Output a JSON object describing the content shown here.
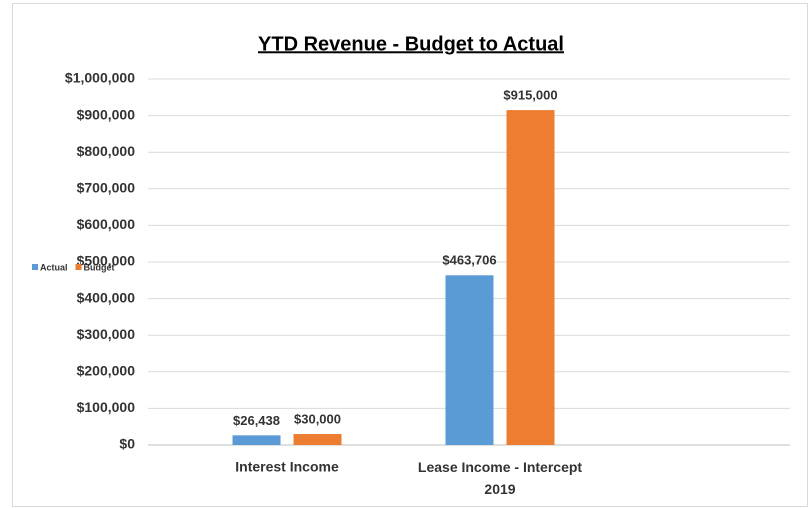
{
  "chart_data": {
    "type": "bar",
    "title": "YTD Revenue - Budget to Actual",
    "categories": [
      "Interest Income",
      "Lease Income - Intercept 2019",
      null
    ],
    "series": [
      {
        "name": "Actual",
        "color": "#5b9bd5",
        "values": [
          26438,
          463706,
          null
        ],
        "value_labels": [
          "$26,438",
          "$463,706",
          null
        ]
      },
      {
        "name": "Budget",
        "color": "#ed7d31",
        "values": [
          30000,
          915000,
          null
        ],
        "value_labels": [
          "$30,000",
          "$915,000",
          null
        ]
      }
    ],
    "ylim": [
      0,
      1000000
    ],
    "yticks": [
      {
        "value": 0,
        "label": "$0"
      },
      {
        "value": 100000,
        "label": "$100,000"
      },
      {
        "value": 200000,
        "label": "$200,000"
      },
      {
        "value": 300000,
        "label": "$300,000"
      },
      {
        "value": 400000,
        "label": "$400,000"
      },
      {
        "value": 500000,
        "label": "$500,000"
      },
      {
        "value": 600000,
        "label": "$600,000"
      },
      {
        "value": 700000,
        "label": "$700,000"
      },
      {
        "value": 800000,
        "label": "$800,000"
      },
      {
        "value": 900000,
        "label": "$900,000"
      },
      {
        "value": 1000000,
        "label": "$1,000,000"
      }
    ],
    "grid": true,
    "legend": "left"
  }
}
